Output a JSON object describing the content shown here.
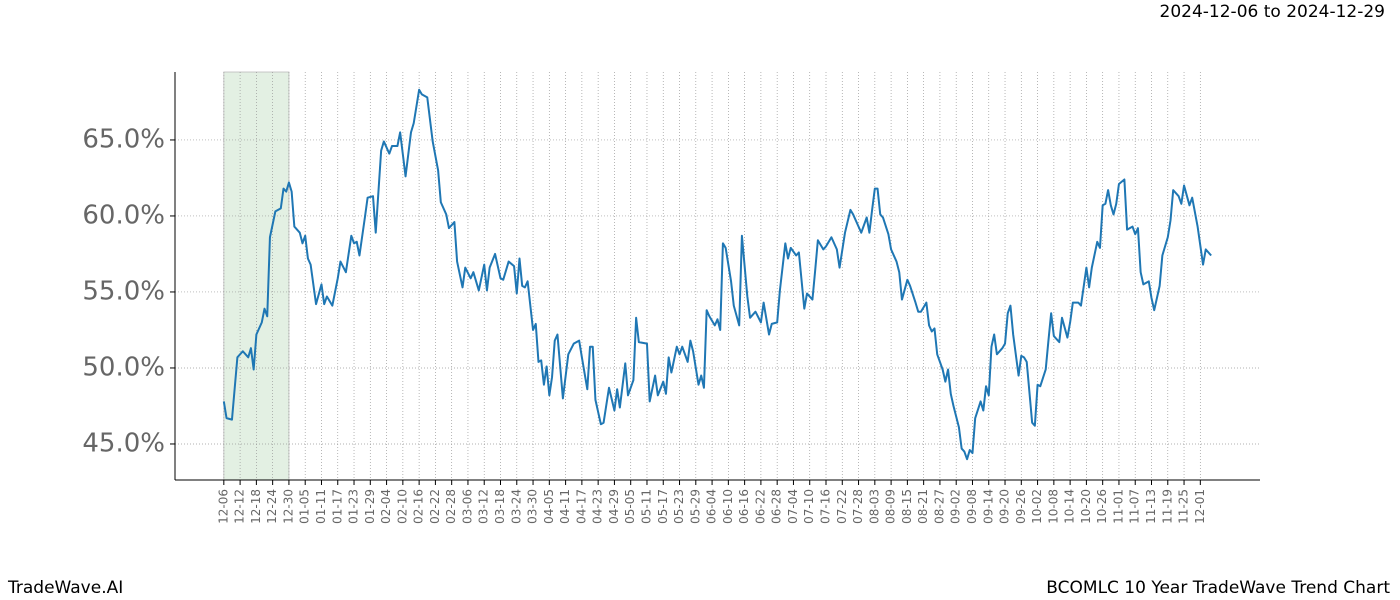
{
  "chart_data": {
    "type": "line",
    "title": "2024-12-06 to 2024-12-29",
    "footer_left": "TradeWave.AI",
    "footer_right": "BCOMLC 10 Year TradeWave Trend Chart",
    "highlight": {
      "start": 0,
      "end": 24,
      "color": "#e3f0e3"
    },
    "grid": true,
    "xlim": [
      -18,
      382
    ],
    "ylim": [
      42.63,
      69.47
    ],
    "yticks": [
      {
        "value": 45,
        "label": "45.0%"
      },
      {
        "value": 50,
        "label": "50.0%"
      },
      {
        "value": 55,
        "label": "55.0%"
      },
      {
        "value": 60,
        "label": "60.0%"
      },
      {
        "value": 65,
        "label": "65.0%"
      }
    ],
    "xticks": [
      {
        "value": 0,
        "label": "12-06"
      },
      {
        "value": 6,
        "label": "12-12"
      },
      {
        "value": 12,
        "label": "12-18"
      },
      {
        "value": 18,
        "label": "12-24"
      },
      {
        "value": 24,
        "label": "12-30"
      },
      {
        "value": 30,
        "label": "01-05"
      },
      {
        "value": 36,
        "label": "01-11"
      },
      {
        "value": 42,
        "label": "01-17"
      },
      {
        "value": 48,
        "label": "01-23"
      },
      {
        "value": 54,
        "label": "01-29"
      },
      {
        "value": 60,
        "label": "02-04"
      },
      {
        "value": 66,
        "label": "02-10"
      },
      {
        "value": 72,
        "label": "02-16"
      },
      {
        "value": 78,
        "label": "02-22"
      },
      {
        "value": 84,
        "label": "02-28"
      },
      {
        "value": 90,
        "label": "03-06"
      },
      {
        "value": 96,
        "label": "03-12"
      },
      {
        "value": 102,
        "label": "03-18"
      },
      {
        "value": 108,
        "label": "03-24"
      },
      {
        "value": 114,
        "label": "03-30"
      },
      {
        "value": 120,
        "label": "04-05"
      },
      {
        "value": 126,
        "label": "04-11"
      },
      {
        "value": 132,
        "label": "04-17"
      },
      {
        "value": 138,
        "label": "04-23"
      },
      {
        "value": 144,
        "label": "04-29"
      },
      {
        "value": 150,
        "label": "05-05"
      },
      {
        "value": 156,
        "label": "05-11"
      },
      {
        "value": 162,
        "label": "05-17"
      },
      {
        "value": 168,
        "label": "05-23"
      },
      {
        "value": 174,
        "label": "05-29"
      },
      {
        "value": 180,
        "label": "06-04"
      },
      {
        "value": 186,
        "label": "06-10"
      },
      {
        "value": 192,
        "label": "06-16"
      },
      {
        "value": 198,
        "label": "06-22"
      },
      {
        "value": 204,
        "label": "06-28"
      },
      {
        "value": 210,
        "label": "07-04"
      },
      {
        "value": 216,
        "label": "07-10"
      },
      {
        "value": 222,
        "label": "07-16"
      },
      {
        "value": 228,
        "label": "07-22"
      },
      {
        "value": 234,
        "label": "07-28"
      },
      {
        "value": 240,
        "label": "08-03"
      },
      {
        "value": 246,
        "label": "08-09"
      },
      {
        "value": 252,
        "label": "08-15"
      },
      {
        "value": 258,
        "label": "08-21"
      },
      {
        "value": 264,
        "label": "08-27"
      },
      {
        "value": 270,
        "label": "09-02"
      },
      {
        "value": 276,
        "label": "09-08"
      },
      {
        "value": 282,
        "label": "09-14"
      },
      {
        "value": 288,
        "label": "09-20"
      },
      {
        "value": 294,
        "label": "09-26"
      },
      {
        "value": 300,
        "label": "10-02"
      },
      {
        "value": 306,
        "label": "10-08"
      },
      {
        "value": 312,
        "label": "10-14"
      },
      {
        "value": 318,
        "label": "10-20"
      },
      {
        "value": 324,
        "label": "10-26"
      },
      {
        "value": 330,
        "label": "11-01"
      },
      {
        "value": 336,
        "label": "11-07"
      },
      {
        "value": 342,
        "label": "11-13"
      },
      {
        "value": 348,
        "label": "11-19"
      },
      {
        "value": 354,
        "label": "11-25"
      },
      {
        "value": 360,
        "label": "12-01"
      }
    ],
    "x": [
      0,
      1,
      3,
      5,
      7,
      9,
      10,
      11,
      12,
      14,
      15,
      16,
      17,
      19,
      21,
      22,
      23,
      24,
      25,
      26,
      28,
      29,
      30,
      31,
      32,
      34,
      36,
      37,
      38,
      40,
      42,
      43,
      45,
      47,
      48,
      49,
      50,
      52,
      53,
      55,
      56,
      58,
      59,
      61,
      62,
      64,
      65,
      67,
      69,
      70,
      72,
      73,
      75,
      77,
      79,
      80,
      82,
      83,
      85,
      86,
      88,
      89,
      91,
      92,
      94,
      96,
      97,
      98,
      100,
      102,
      103,
      105,
      107,
      108,
      109,
      110,
      111,
      112,
      114,
      115,
      116,
      117,
      118,
      119,
      120,
      121,
      122,
      123,
      125,
      127,
      129,
      131,
      132,
      134,
      135,
      136,
      137,
      139,
      140,
      142,
      144,
      145,
      146,
      148,
      149,
      151,
      152,
      153,
      156,
      157,
      159,
      160,
      162,
      163,
      164,
      165,
      167,
      168,
      169,
      171,
      172,
      173,
      175,
      176,
      177,
      178,
      179,
      181,
      182,
      183,
      184,
      185,
      187,
      188,
      190,
      191,
      193,
      194,
      196,
      198,
      199,
      201,
      202,
      204,
      205,
      207,
      208,
      209,
      211,
      212,
      214,
      215,
      217,
      218,
      219,
      221,
      222,
      224,
      226,
      227,
      229,
      231,
      232,
      234,
      235,
      237,
      238,
      239,
      240,
      241,
      242,
      243,
      245,
      246,
      248,
      249,
      250,
      252,
      253,
      255,
      256,
      257,
      259,
      260,
      261,
      262,
      263,
      265,
      266,
      267,
      268,
      269,
      271,
      272,
      273,
      274,
      275,
      276,
      277,
      279,
      280,
      281,
      282,
      283,
      284,
      285,
      287,
      288,
      289,
      290,
      291,
      293,
      294,
      295,
      296,
      298,
      299,
      300,
      301,
      303,
      304,
      305,
      306,
      308,
      309,
      311,
      312,
      313,
      315,
      316,
      318,
      319,
      320,
      322,
      323,
      324,
      325,
      326,
      327,
      328,
      329,
      330,
      332,
      333,
      335,
      336,
      337,
      338,
      339,
      341,
      342,
      343,
      345,
      346,
      348,
      349,
      350,
      352,
      353,
      354,
      356,
      357,
      359,
      361,
      362,
      364
    ],
    "series": [
      {
        "color": "#1f77b4",
        "values": [
          47.8,
          46.7,
          46.6,
          50.7,
          51.1,
          50.7,
          51.3,
          49.9,
          52.2,
          53.0,
          53.9,
          53.4,
          58.6,
          60.3,
          60.5,
          61.8,
          61.6,
          62.2,
          61.6,
          59.3,
          58.9,
          58.2,
          58.7,
          57.2,
          56.8,
          54.2,
          55.5,
          54.2,
          54.7,
          54.1,
          55.9,
          57.0,
          56.3,
          58.7,
          58.2,
          58.3,
          57.4,
          59.9,
          61.2,
          61.3,
          58.9,
          64.3,
          64.9,
          64.1,
          64.6,
          64.6,
          65.5,
          62.6,
          65.5,
          66.1,
          68.3,
          68.0,
          67.8,
          64.9,
          63.0,
          60.9,
          60.1,
          59.2,
          59.6,
          57.0,
          55.3,
          56.6,
          55.9,
          56.3,
          55.1,
          56.8,
          55.1,
          56.6,
          57.5,
          55.9,
          55.8,
          57.0,
          56.7,
          54.9,
          57.2,
          55.4,
          55.3,
          55.7,
          52.5,
          52.9,
          50.4,
          50.5,
          48.9,
          50.1,
          48.2,
          49.4,
          51.8,
          52.2,
          48.0,
          50.9,
          51.6,
          51.8,
          50.7,
          48.6,
          51.4,
          51.4,
          47.9,
          46.3,
          46.4,
          48.7,
          47.2,
          48.6,
          47.4,
          50.3,
          48.2,
          49.2,
          53.3,
          51.7,
          51.6,
          47.8,
          49.5,
          48.2,
          49.1,
          48.3,
          50.7,
          49.7,
          51.4,
          50.9,
          51.4,
          50.4,
          51.8,
          51.1,
          48.9,
          49.5,
          48.7,
          53.8,
          53.4,
          52.8,
          53.2,
          52.5,
          58.2,
          57.9,
          55.7,
          54.1,
          52.8,
          58.7,
          54.7,
          53.3,
          53.7,
          53.0,
          54.3,
          52.2,
          52.9,
          53.0,
          55.1,
          58.2,
          57.2,
          57.9,
          57.4,
          57.6,
          53.9,
          54.9,
          54.5,
          56.4,
          58.4,
          57.8,
          58.0,
          58.6,
          57.8,
          56.6,
          58.9,
          60.4,
          60.1,
          59.3,
          58.9,
          59.9,
          58.9,
          60.4,
          61.8,
          61.8,
          60.1,
          59.9,
          58.8,
          57.8,
          57.0,
          56.3,
          54.5,
          55.8,
          55.4,
          54.3,
          53.7,
          53.7,
          54.3,
          52.8,
          52.4,
          52.6,
          50.9,
          49.9,
          49.1,
          49.9,
          48.3,
          47.5,
          46.1,
          44.7,
          44.5,
          44.0,
          44.6,
          44.4,
          46.7,
          47.8,
          47.2,
          48.8,
          48.2,
          51.4,
          52.2,
          50.9,
          51.3,
          51.6,
          53.6,
          54.1,
          52.2,
          49.5,
          50.8,
          50.7,
          50.4,
          46.4,
          46.2,
          48.9,
          48.8,
          49.9,
          51.8,
          53.6,
          52.1,
          51.7,
          53.3,
          52.0,
          53.0,
          54.3,
          54.3,
          54.1,
          56.6,
          55.3,
          56.6,
          58.3,
          57.9,
          60.7,
          60.8,
          61.7,
          60.7,
          60.1,
          60.8,
          62.1,
          62.4,
          59.1,
          59.3,
          58.8,
          59.2,
          56.3,
          55.5,
          55.7,
          54.6,
          53.8,
          55.4,
          57.4,
          58.6,
          59.7,
          61.7,
          61.3,
          60.8,
          62.0,
          60.7,
          61.2,
          59.3,
          56.8,
          57.8,
          57.4
        ]
      }
    ]
  }
}
